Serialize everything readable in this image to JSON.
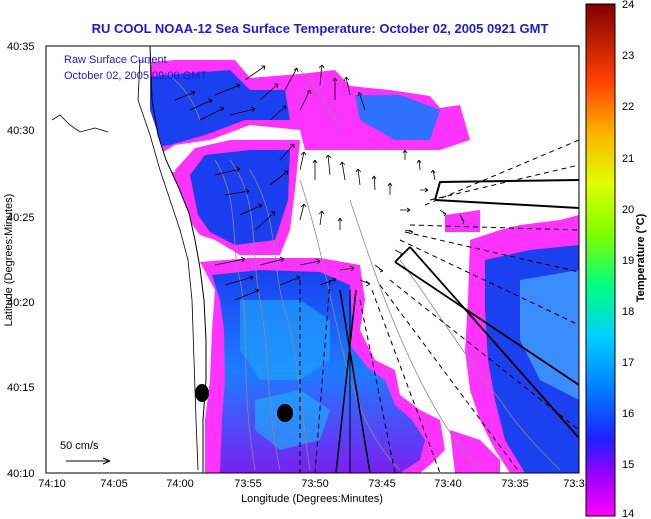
{
  "title": "RU COOL   NOAA-12  Sea Surface Temperature:  October 02, 2005 0921 GMT",
  "legend_text": {
    "line1": "Raw Surface Current",
    "line2": "October 02, 2005 09:00 GMT"
  },
  "scale_label": "50 cm/s",
  "x_axis": {
    "label": "Longitude (Degrees:Minutes)",
    "ticks": [
      "74:10",
      "74:05",
      "74:00",
      "73:55",
      "73:50",
      "73:45",
      "73:40",
      "73:35",
      "73:3"
    ]
  },
  "y_axis": {
    "label": "Latitude (Degrees:Minutes)",
    "ticks": [
      "40:35",
      "40:30",
      "40:25",
      "40:20",
      "40:15",
      "40:10"
    ]
  },
  "colorbar": {
    "label": "Temperature (°C)",
    "ticks": [
      "24",
      "23",
      "22",
      "21",
      "20",
      "19",
      "18",
      "17",
      "16",
      "15",
      "14"
    ]
  },
  "colors": {
    "title": "#1a1ad9",
    "land": "#ffffff",
    "warm_edge": "#ff33ff",
    "cold_water": "#1a3df0"
  }
}
